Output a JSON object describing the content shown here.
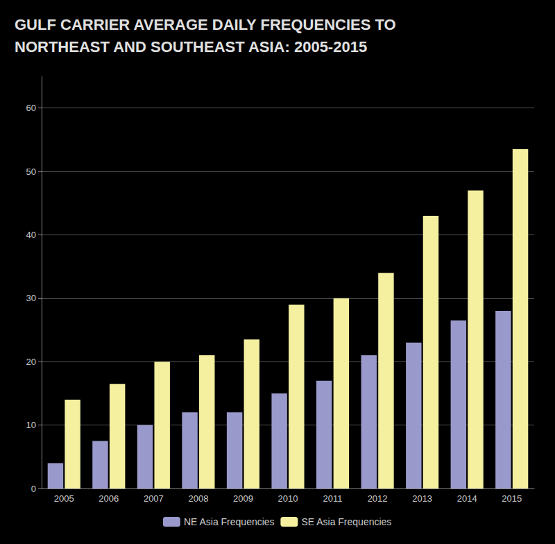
{
  "chart_data": {
    "type": "bar",
    "title": "GULF CARRIER AVERAGE DAILY FREQUENCIES TO\nNORTHEAST AND SOUTHEAST ASIA: 2005-2015",
    "categories": [
      "2005",
      "2006",
      "2007",
      "2008",
      "2009",
      "2010",
      "2011",
      "2012",
      "2013",
      "2014",
      "2015"
    ],
    "series": [
      {
        "name": "NE Asia Frequencies",
        "color": "#9999CC",
        "values": [
          4,
          7.5,
          10,
          12,
          12,
          15,
          17,
          21,
          23,
          26.5,
          28
        ]
      },
      {
        "name": "SE Asia Frequencies",
        "color": "#F5F0A0",
        "values": [
          14,
          16.5,
          20,
          21,
          23.5,
          29,
          30,
          34,
          43,
          47,
          53.5
        ]
      }
    ],
    "ylim": [
      0,
      65
    ],
    "yticks": [
      0,
      10,
      20,
      30,
      40,
      50,
      60
    ],
    "grid": true,
    "legend": "bottom"
  }
}
